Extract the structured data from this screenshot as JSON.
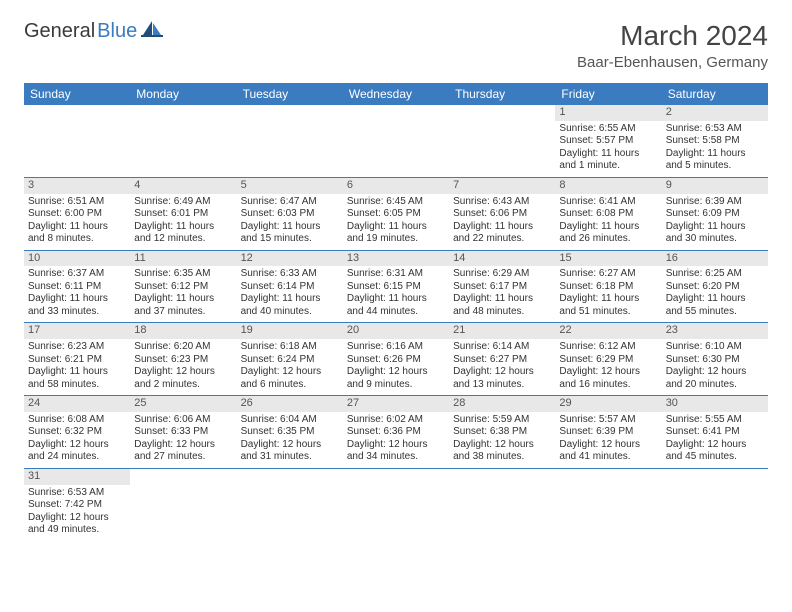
{
  "logo": {
    "textDark": "General",
    "textBlue": "Blue"
  },
  "title": "March 2024",
  "location": "Baar-Ebenhausen, Germany",
  "colors": {
    "headerBg": "#3b7bbf",
    "headerText": "#ffffff",
    "dayStripBg": "#e8e8e8",
    "borderColor": "#3b7bbf",
    "bodyText": "#333333"
  },
  "weekdays": [
    "Sunday",
    "Monday",
    "Tuesday",
    "Wednesday",
    "Thursday",
    "Friday",
    "Saturday"
  ],
  "weeks": [
    [
      null,
      null,
      null,
      null,
      null,
      {
        "n": "1",
        "sr": "Sunrise: 6:55 AM",
        "ss": "Sunset: 5:57 PM",
        "d1": "Daylight: 11 hours",
        "d2": "and 1 minute."
      },
      {
        "n": "2",
        "sr": "Sunrise: 6:53 AM",
        "ss": "Sunset: 5:58 PM",
        "d1": "Daylight: 11 hours",
        "d2": "and 5 minutes."
      }
    ],
    [
      {
        "n": "3",
        "sr": "Sunrise: 6:51 AM",
        "ss": "Sunset: 6:00 PM",
        "d1": "Daylight: 11 hours",
        "d2": "and 8 minutes."
      },
      {
        "n": "4",
        "sr": "Sunrise: 6:49 AM",
        "ss": "Sunset: 6:01 PM",
        "d1": "Daylight: 11 hours",
        "d2": "and 12 minutes."
      },
      {
        "n": "5",
        "sr": "Sunrise: 6:47 AM",
        "ss": "Sunset: 6:03 PM",
        "d1": "Daylight: 11 hours",
        "d2": "and 15 minutes."
      },
      {
        "n": "6",
        "sr": "Sunrise: 6:45 AM",
        "ss": "Sunset: 6:05 PM",
        "d1": "Daylight: 11 hours",
        "d2": "and 19 minutes."
      },
      {
        "n": "7",
        "sr": "Sunrise: 6:43 AM",
        "ss": "Sunset: 6:06 PM",
        "d1": "Daylight: 11 hours",
        "d2": "and 22 minutes."
      },
      {
        "n": "8",
        "sr": "Sunrise: 6:41 AM",
        "ss": "Sunset: 6:08 PM",
        "d1": "Daylight: 11 hours",
        "d2": "and 26 minutes."
      },
      {
        "n": "9",
        "sr": "Sunrise: 6:39 AM",
        "ss": "Sunset: 6:09 PM",
        "d1": "Daylight: 11 hours",
        "d2": "and 30 minutes."
      }
    ],
    [
      {
        "n": "10",
        "sr": "Sunrise: 6:37 AM",
        "ss": "Sunset: 6:11 PM",
        "d1": "Daylight: 11 hours",
        "d2": "and 33 minutes."
      },
      {
        "n": "11",
        "sr": "Sunrise: 6:35 AM",
        "ss": "Sunset: 6:12 PM",
        "d1": "Daylight: 11 hours",
        "d2": "and 37 minutes."
      },
      {
        "n": "12",
        "sr": "Sunrise: 6:33 AM",
        "ss": "Sunset: 6:14 PM",
        "d1": "Daylight: 11 hours",
        "d2": "and 40 minutes."
      },
      {
        "n": "13",
        "sr": "Sunrise: 6:31 AM",
        "ss": "Sunset: 6:15 PM",
        "d1": "Daylight: 11 hours",
        "d2": "and 44 minutes."
      },
      {
        "n": "14",
        "sr": "Sunrise: 6:29 AM",
        "ss": "Sunset: 6:17 PM",
        "d1": "Daylight: 11 hours",
        "d2": "and 48 minutes."
      },
      {
        "n": "15",
        "sr": "Sunrise: 6:27 AM",
        "ss": "Sunset: 6:18 PM",
        "d1": "Daylight: 11 hours",
        "d2": "and 51 minutes."
      },
      {
        "n": "16",
        "sr": "Sunrise: 6:25 AM",
        "ss": "Sunset: 6:20 PM",
        "d1": "Daylight: 11 hours",
        "d2": "and 55 minutes."
      }
    ],
    [
      {
        "n": "17",
        "sr": "Sunrise: 6:23 AM",
        "ss": "Sunset: 6:21 PM",
        "d1": "Daylight: 11 hours",
        "d2": "and 58 minutes."
      },
      {
        "n": "18",
        "sr": "Sunrise: 6:20 AM",
        "ss": "Sunset: 6:23 PM",
        "d1": "Daylight: 12 hours",
        "d2": "and 2 minutes."
      },
      {
        "n": "19",
        "sr": "Sunrise: 6:18 AM",
        "ss": "Sunset: 6:24 PM",
        "d1": "Daylight: 12 hours",
        "d2": "and 6 minutes."
      },
      {
        "n": "20",
        "sr": "Sunrise: 6:16 AM",
        "ss": "Sunset: 6:26 PM",
        "d1": "Daylight: 12 hours",
        "d2": "and 9 minutes."
      },
      {
        "n": "21",
        "sr": "Sunrise: 6:14 AM",
        "ss": "Sunset: 6:27 PM",
        "d1": "Daylight: 12 hours",
        "d2": "and 13 minutes."
      },
      {
        "n": "22",
        "sr": "Sunrise: 6:12 AM",
        "ss": "Sunset: 6:29 PM",
        "d1": "Daylight: 12 hours",
        "d2": "and 16 minutes."
      },
      {
        "n": "23",
        "sr": "Sunrise: 6:10 AM",
        "ss": "Sunset: 6:30 PM",
        "d1": "Daylight: 12 hours",
        "d2": "and 20 minutes."
      }
    ],
    [
      {
        "n": "24",
        "sr": "Sunrise: 6:08 AM",
        "ss": "Sunset: 6:32 PM",
        "d1": "Daylight: 12 hours",
        "d2": "and 24 minutes."
      },
      {
        "n": "25",
        "sr": "Sunrise: 6:06 AM",
        "ss": "Sunset: 6:33 PM",
        "d1": "Daylight: 12 hours",
        "d2": "and 27 minutes."
      },
      {
        "n": "26",
        "sr": "Sunrise: 6:04 AM",
        "ss": "Sunset: 6:35 PM",
        "d1": "Daylight: 12 hours",
        "d2": "and 31 minutes."
      },
      {
        "n": "27",
        "sr": "Sunrise: 6:02 AM",
        "ss": "Sunset: 6:36 PM",
        "d1": "Daylight: 12 hours",
        "d2": "and 34 minutes."
      },
      {
        "n": "28",
        "sr": "Sunrise: 5:59 AM",
        "ss": "Sunset: 6:38 PM",
        "d1": "Daylight: 12 hours",
        "d2": "and 38 minutes."
      },
      {
        "n": "29",
        "sr": "Sunrise: 5:57 AM",
        "ss": "Sunset: 6:39 PM",
        "d1": "Daylight: 12 hours",
        "d2": "and 41 minutes."
      },
      {
        "n": "30",
        "sr": "Sunrise: 5:55 AM",
        "ss": "Sunset: 6:41 PM",
        "d1": "Daylight: 12 hours",
        "d2": "and 45 minutes."
      }
    ],
    [
      {
        "n": "31",
        "sr": "Sunrise: 6:53 AM",
        "ss": "Sunset: 7:42 PM",
        "d1": "Daylight: 12 hours",
        "d2": "and 49 minutes."
      },
      null,
      null,
      null,
      null,
      null,
      null
    ]
  ]
}
